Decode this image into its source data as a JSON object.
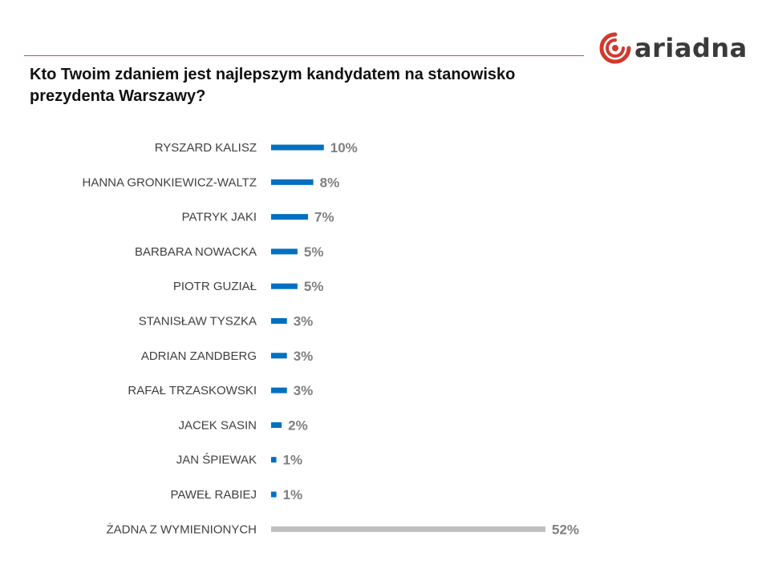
{
  "brand": {
    "name": "ariadna",
    "colors": {
      "accent": "#d03a2f",
      "text": "#3a3a3a",
      "rule": "#c0504d"
    }
  },
  "chart_data": {
    "type": "bar",
    "orientation": "horizontal",
    "title": "Kto Twoim zdaniem jest najlepszym kandydatem na stanowisko prezydenta Warszawy?",
    "unit": "%",
    "categories": [
      "RYSZARD KALISZ",
      "HANNA GRONKIEWICZ-WALTZ",
      "PATRYK JAKI",
      "BARBARA NOWACKA",
      "PIOTR GUZIAŁ",
      "STANISŁAW TYSZKA",
      "ADRIAN ZANDBERG",
      "RAFAŁ TRZASKOWSKI",
      "JACEK SASIN",
      "JAN ŚPIEWAK",
      "PAWEŁ RABIEJ",
      "ŻADNA  Z WYMIENIONYCH"
    ],
    "values": [
      10,
      8,
      7,
      5,
      5,
      3,
      3,
      3,
      2,
      1,
      1,
      52
    ],
    "value_labels": [
      "10%",
      "8%",
      "7%",
      "5%",
      "5%",
      "3%",
      "3%",
      "3%",
      "2%",
      "1%",
      "1%",
      "52%"
    ],
    "bar_colors": [
      "#0070c0",
      "#0070c0",
      "#0070c0",
      "#0070c0",
      "#0070c0",
      "#0070c0",
      "#0070c0",
      "#0070c0",
      "#0070c0",
      "#0070c0",
      "#0070c0",
      "#bfbfbf"
    ],
    "grid": false,
    "legend": "none",
    "xlim": [
      0,
      52
    ]
  }
}
